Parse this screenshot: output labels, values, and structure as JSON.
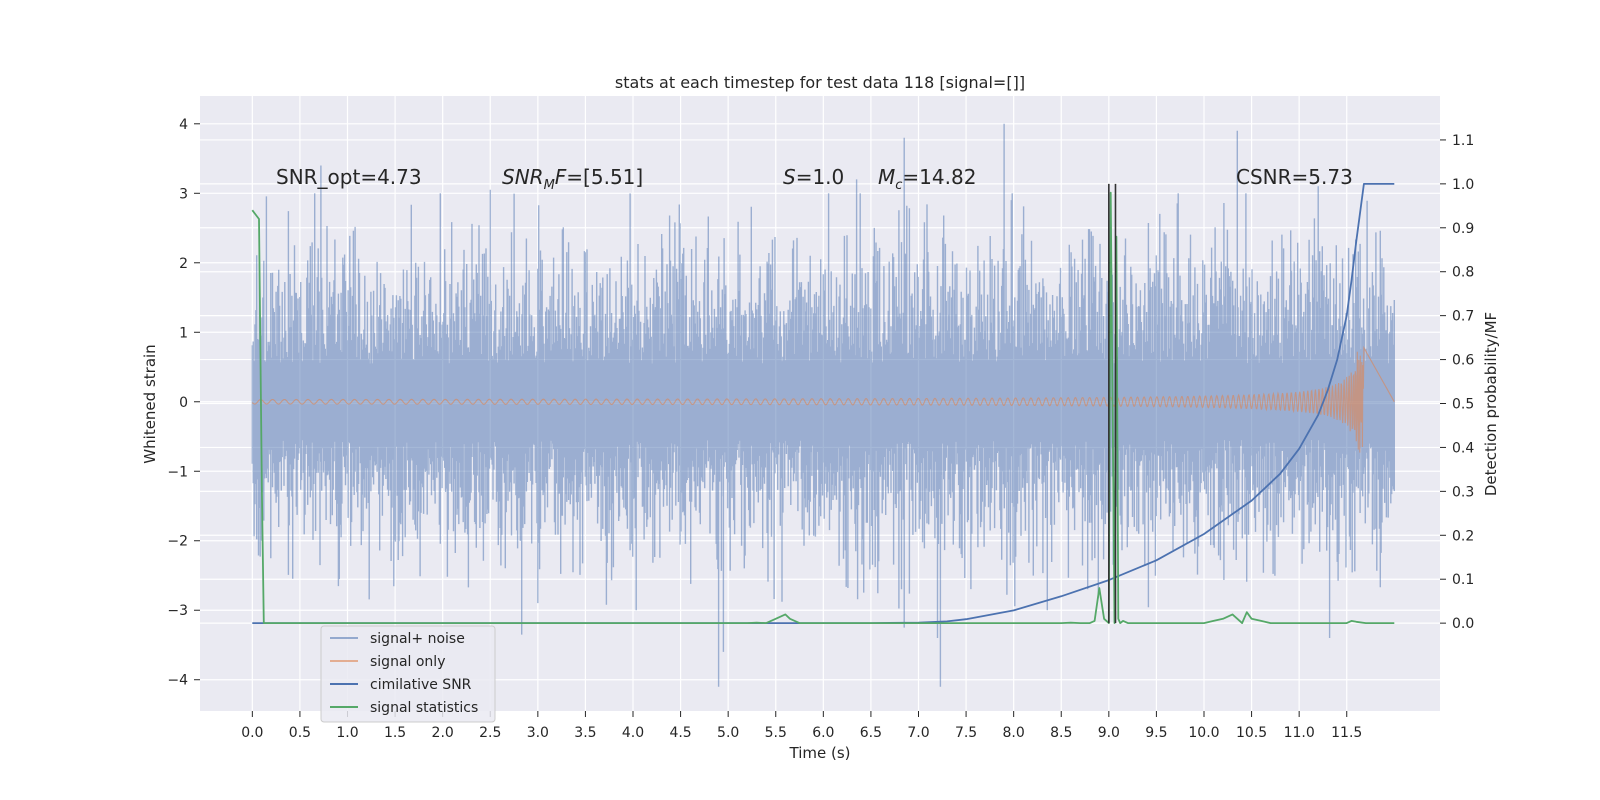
{
  "chart_data": {
    "type": "line",
    "title": "stats at each timestep for test data 118 [signal=[]]",
    "xlabel": "Time (s)",
    "ylabel_left": "Whitened strain",
    "ylabel_right": "Detection probability/MF",
    "xlim": [
      -0.55,
      12.48
    ],
    "ylim_left": [
      -4.45,
      4.4
    ],
    "ylim_right": [
      -0.2,
      1.2
    ],
    "x_ticks": [
      0.0,
      0.5,
      1.0,
      1.5,
      2.0,
      2.5,
      3.0,
      3.5,
      4.0,
      4.5,
      5.0,
      5.5,
      6.0,
      6.5,
      7.0,
      7.5,
      8.0,
      8.5,
      9.0,
      9.5,
      10.0,
      10.5,
      11.0,
      11.5
    ],
    "x_tick_labels": [
      "0.0",
      "0.5",
      "1.0",
      "1.5",
      "2.0",
      "2.5",
      "3.0",
      "3.5",
      "4.0",
      "4.5",
      "5.0",
      "5.5",
      "6.0",
      "6.5",
      "7.0",
      "7.5",
      "8.0",
      "8.5",
      "9.0",
      "9.5",
      "10.0",
      "10.5",
      "11.0",
      "11.5"
    ],
    "y_left_ticks": [
      -4,
      -3,
      -2,
      -1,
      0,
      1,
      2,
      3,
      4
    ],
    "y_left_tick_labels": [
      "−4",
      "−3",
      "−2",
      "−1",
      "0",
      "1",
      "2",
      "3",
      "4"
    ],
    "y_right_ticks": [
      0.0,
      0.1,
      0.2,
      0.3,
      0.4,
      0.5,
      0.6,
      0.7,
      0.8,
      0.9,
      1.0,
      1.1
    ],
    "y_right_tick_labels": [
      "0.0",
      "0.1",
      "0.2",
      "0.3",
      "0.4",
      "0.5",
      "0.6",
      "0.7",
      "0.8",
      "0.9",
      "1.0",
      "1.1"
    ],
    "grid": true,
    "legend_position": "lower-left",
    "series": [
      {
        "name": "signal+ noise",
        "axis": "left",
        "color": "#4c72b0",
        "style": "dense noise band",
        "x_range": [
          0.0,
          12.0
        ],
        "typical_band": [
          -1.8,
          1.8
        ],
        "extremes": [
          {
            "x": 0.72,
            "y": 3.4
          },
          {
            "x": 2.5,
            "y": 3.05
          },
          {
            "x": 2.83,
            "y": -3.35
          },
          {
            "x": 4.9,
            "y": -4.1
          },
          {
            "x": 4.95,
            "y": -3.6
          },
          {
            "x": 6.35,
            "y": 3.2
          },
          {
            "x": 6.85,
            "y": 3.8
          },
          {
            "x": 6.85,
            "y": -3.25
          },
          {
            "x": 7.23,
            "y": -4.1
          },
          {
            "x": 7.2,
            "y": -3.4
          },
          {
            "x": 7.9,
            "y": 4.0
          },
          {
            "x": 9.0,
            "y": 3.1
          },
          {
            "x": 10.35,
            "y": 3.9
          },
          {
            "x": 11.32,
            "y": -3.4
          },
          {
            "x": 11.2,
            "y": 3.1
          }
        ]
      },
      {
        "name": "signal only",
        "axis": "left",
        "color": "#dd8452",
        "style": "chirp",
        "x_range": [
          0.0,
          11.68
        ],
        "peak_amplitude": 0.78,
        "merger_time": 11.68
      },
      {
        "name": "cimilative SNR",
        "axis": "right",
        "color": "#4c72b0",
        "x": [
          0.0,
          6.5,
          7.0,
          7.3,
          7.5,
          8.0,
          8.5,
          9.0,
          9.5,
          10.0,
          10.5,
          10.8,
          11.0,
          11.2,
          11.3,
          11.4,
          11.5,
          11.55,
          11.6,
          11.65,
          11.68,
          11.69,
          12.0
        ],
        "y": [
          0.0,
          0.0,
          0.001,
          0.004,
          0.009,
          0.029,
          0.061,
          0.098,
          0.143,
          0.203,
          0.279,
          0.34,
          0.397,
          0.474,
          0.53,
          0.6,
          0.7,
          0.78,
          0.87,
          0.95,
          1.0,
          1.0,
          1.0
        ]
      },
      {
        "name": "signal statistics",
        "axis": "right",
        "color": "#55a868",
        "x": [
          0.0,
          0.07,
          0.1,
          0.12,
          0.18,
          0.25,
          1.0,
          3.0,
          5.0,
          5.2,
          5.3,
          5.4,
          5.5,
          5.6,
          5.65,
          5.75,
          6.0,
          7.0,
          8.0,
          8.5,
          8.6,
          8.7,
          8.8,
          8.85,
          8.9,
          8.95,
          9.0,
          9.02,
          9.06,
          9.08,
          9.1,
          9.12,
          9.15,
          9.2,
          9.5,
          10.0,
          10.1,
          10.2,
          10.3,
          10.4,
          10.45,
          10.5,
          10.6,
          10.7,
          10.8,
          11.0,
          11.5,
          11.55,
          11.6,
          11.7,
          11.75,
          11.8,
          12.0
        ],
        "y": [
          0.94,
          0.92,
          0.3,
          0.0,
          0.0,
          0.0,
          0.0,
          0.0,
          0.0,
          0.0,
          0.001,
          0.0,
          0.01,
          0.02,
          0.01,
          0.0,
          0.0,
          0.0,
          0.0,
          0.0,
          0.001,
          0.0,
          0.0,
          0.005,
          0.08,
          0.01,
          0.0,
          0.98,
          0.0,
          0.88,
          0.01,
          0.0,
          0.005,
          0.0,
          0.0,
          0.0,
          0.005,
          0.01,
          0.02,
          0.0,
          0.025,
          0.01,
          0.005,
          0.0,
          0.0,
          0.0,
          0.0,
          0.005,
          0.003,
          0.0,
          0.0,
          0.0,
          0.0
        ]
      }
    ],
    "vertical_lines": [
      {
        "x": 9.0,
        "color": "#333333",
        "y_right": [
          0.0,
          1.0
        ]
      },
      {
        "x": 9.07,
        "color": "#333333",
        "y_right": [
          0.0,
          1.0
        ]
      }
    ],
    "annotations": [
      {
        "id": "snr-opt",
        "text": "SNR_opt=4.73"
      },
      {
        "id": "snr-mf",
        "text": "SNR_MF=[5.51]"
      },
      {
        "id": "s",
        "text": "S=1.0"
      },
      {
        "id": "mc",
        "text": "M_c=14.82"
      },
      {
        "id": "csnr",
        "text": "CSNR=5.73"
      }
    ]
  }
}
